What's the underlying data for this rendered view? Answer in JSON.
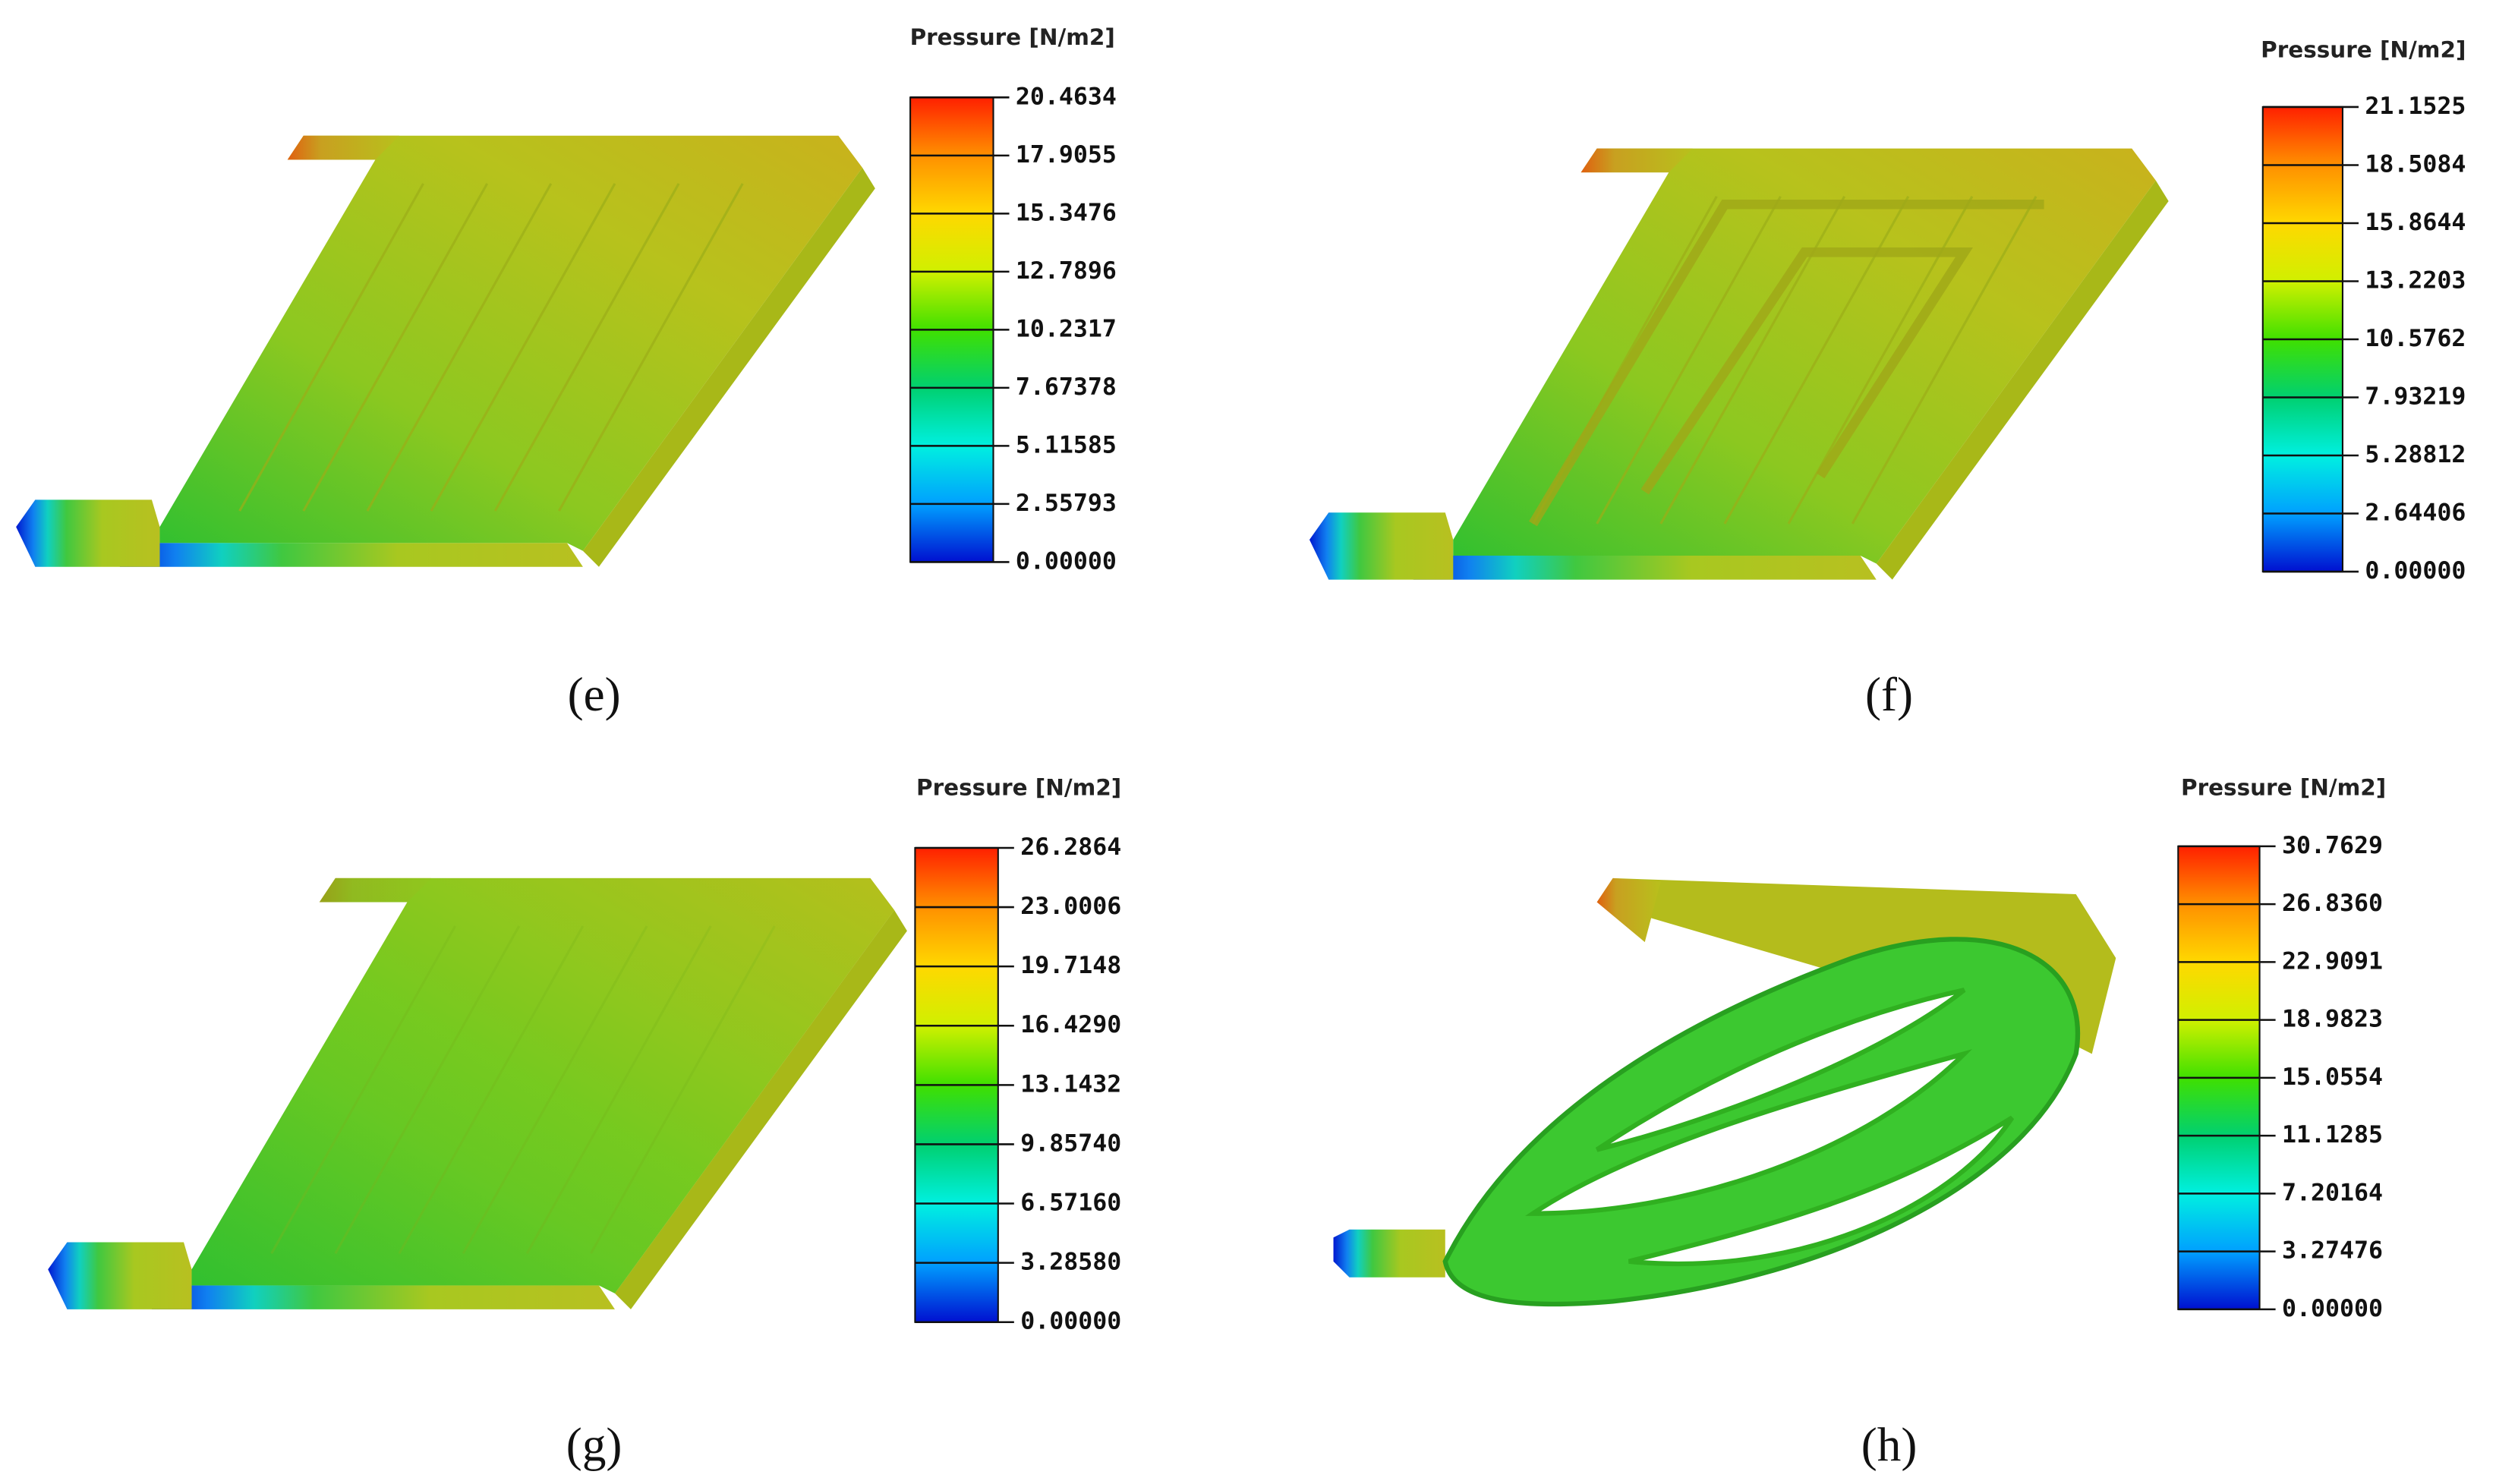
{
  "panels": [
    {
      "label": "(e)",
      "legend_title": "Pressure [N/m2]",
      "ticks": [
        "20.4634",
        "17.9055",
        "15.3476",
        "12.7896",
        "10.2317",
        "7.67378",
        "5.11585",
        "2.55793",
        "0.00000"
      ]
    },
    {
      "label": "(f)",
      "legend_title": "Pressure [N/m2]",
      "ticks": [
        "21.1525",
        "18.5084",
        "15.8644",
        "13.2203",
        "10.5762",
        "7.93219",
        "5.28812",
        "2.64406",
        "0.00000"
      ]
    },
    {
      "label": "(g)",
      "legend_title": "Pressure [N/m2]",
      "ticks": [
        "26.2864",
        "23.0006",
        "19.7148",
        "16.4290",
        "13.1432",
        "9.85740",
        "6.57160",
        "3.28580",
        "0.00000"
      ]
    },
    {
      "label": "(h)",
      "legend_title": "Pressure [N/m2]",
      "ticks": [
        "30.7629",
        "26.8360",
        "22.9091",
        "18.9823",
        "15.0554",
        "11.1285",
        "7.20164",
        "3.27476",
        "0.00000"
      ]
    }
  ]
}
